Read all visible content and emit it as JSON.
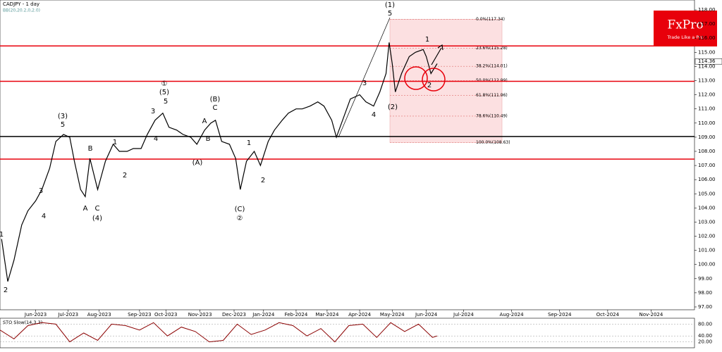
{
  "chart_data": {
    "type": "line",
    "title": "CADJPY - 1 day",
    "subtitle": "BB(20,20.2,0,2.0)",
    "color": "#000000",
    "x": [
      1,
      5,
      9,
      14,
      18,
      23,
      27,
      32,
      36,
      41,
      45,
      48,
      52,
      55,
      58,
      63,
      68,
      73,
      77,
      82,
      86,
      91,
      95,
      100,
      105,
      109,
      114,
      118,
      123,
      127,
      132,
      136,
      139,
      143,
      148,
      152,
      155,
      159,
      164,
      168,
      173,
      177,
      182,
      186,
      191,
      195,
      200,
      205,
      209,
      214,
      217,
      222,
      226,
      232,
      236,
      241,
      245,
      249,
      251,
      253,
      255,
      259,
      264,
      268,
      273,
      275,
      278,
      282
    ],
    "values": [
      101.8,
      98.8,
      100.3,
      102.8,
      103.8,
      104.5,
      105.3,
      106.8,
      108.7,
      109.2,
      109.0,
      107.3,
      105.3,
      104.8,
      107.5,
      105.3,
      107.3,
      108.5,
      108.0,
      108.0,
      108.2,
      108.2,
      109.2,
      110.2,
      110.7,
      109.7,
      109.5,
      109.2,
      109.0,
      108.5,
      109.5,
      110.0,
      110.2,
      108.7,
      108.5,
      107.5,
      105.3,
      107.3,
      108.0,
      107.0,
      108.7,
      109.5,
      110.2,
      110.7,
      111.0,
      111.0,
      111.2,
      111.5,
      111.2,
      110.2,
      109.0,
      110.5,
      111.7,
      112.0,
      111.5,
      111.2,
      112.2,
      113.5,
      115.7,
      114.2,
      112.2,
      113.5,
      114.7,
      115.0,
      115.2,
      114.7,
      113.5,
      114.2
    ],
    "xlim": [
      0,
      448
    ],
    "ylim": [
      96.8,
      118.7
    ],
    "xticks": [
      {
        "value": 23,
        "label": "Jun-2023"
      },
      {
        "value": 44,
        "label": "Jul-2023"
      },
      {
        "value": 64,
        "label": "Aug-2023"
      },
      {
        "value": 90,
        "label": "Sep-2023"
      },
      {
        "value": 107,
        "label": "Oct-2023"
      },
      {
        "value": 129,
        "label": "Nov-2023"
      },
      {
        "value": 151,
        "label": "Dec-2023"
      },
      {
        "value": 170,
        "label": "Jan-2024"
      },
      {
        "value": 191,
        "label": "Feb-2024"
      },
      {
        "value": 211,
        "label": "Mar-2024"
      },
      {
        "value": 232,
        "label": "Apr-2024"
      },
      {
        "value": 253,
        "label": "May-2024"
      },
      {
        "value": 275,
        "label": "Jun-2024"
      },
      {
        "value": 299,
        "label": "Jul-2024"
      },
      {
        "value": 330,
        "label": "Aug-2024"
      },
      {
        "value": 361,
        "label": "Sep-2024"
      },
      {
        "value": 392,
        "label": "Oct-2024"
      },
      {
        "value": 420,
        "label": "Nov-2024"
      }
    ],
    "yticks": [
      {
        "value": 97,
        "label": "97.00"
      },
      {
        "value": 98,
        "label": "98.00"
      },
      {
        "value": 99,
        "label": "99.00"
      },
      {
        "value": 100,
        "label": "100.00"
      },
      {
        "value": 101,
        "label": "101.00"
      },
      {
        "value": 102,
        "label": "102.00"
      },
      {
        "value": 103,
        "label": "103.00"
      },
      {
        "value": 104,
        "label": "104.00"
      },
      {
        "value": 105,
        "label": "105.00"
      },
      {
        "value": 106,
        "label": "106.00"
      },
      {
        "value": 107,
        "label": "107.00"
      },
      {
        "value": 108,
        "label": "108.00"
      },
      {
        "value": 109,
        "label": "109.00"
      },
      {
        "value": 110,
        "label": "110.00"
      },
      {
        "value": 111,
        "label": "111.00"
      },
      {
        "value": 112,
        "label": "112.00"
      },
      {
        "value": 113,
        "label": "113.00"
      },
      {
        "value": 114,
        "label": "114.00"
      },
      {
        "value": 115,
        "label": "115.00"
      },
      {
        "value": 116,
        "label": "116.00"
      },
      {
        "value": 117,
        "label": "117.00"
      },
      {
        "value": 118,
        "label": "118.00"
      }
    ],
    "last_price": {
      "value": 114.36,
      "label": "114.36"
    },
    "hlines": [
      {
        "value": 115.45,
        "color": "#e8000b"
      },
      {
        "value": 112.95,
        "color": "#e8000b"
      },
      {
        "value": 109.05,
        "color": "#000000"
      },
      {
        "value": 107.45,
        "color": "#e8000b"
      }
    ],
    "fib_levels": [
      {
        "value": 117.34,
        "label": "0.0%(117.34)"
      },
      {
        "value": 115.28,
        "label": "23.6%(115.28)"
      },
      {
        "value": 114.01,
        "label": "38.2%(114.01)"
      },
      {
        "value": 112.99,
        "label": "50.0%(112.99)"
      },
      {
        "value": 111.96,
        "label": "61.8%(111.96)"
      },
      {
        "value": 110.49,
        "label": "78.6%(110.49)"
      },
      {
        "value": 108.63,
        "label": "100.0%(108.63)"
      }
    ],
    "wave_labels": [
      "(1)",
      "5",
      "1",
      "2",
      "3",
      "4",
      "5",
      "(3)",
      "B",
      "A",
      "C",
      "(4)",
      "1",
      "2",
      "3",
      "4",
      "5",
      "(5)",
      "①",
      "A",
      "B",
      "C",
      "(B)",
      "(A)",
      "1",
      "2",
      "(C)",
      "②",
      "3",
      "4",
      "(2)",
      "1",
      "2"
    ],
    "logo": {
      "name": "FxPro",
      "tagline": "Trade Like a Pro"
    },
    "oscillator": {
      "title": "STO Slow(14,3,3)",
      "ylim": [
        0,
        100
      ],
      "yticks": [
        {
          "value": 80,
          "label": "80.00"
        },
        {
          "value": 40,
          "label": "40.00"
        },
        {
          "value": 20,
          "label": "20.00"
        }
      ],
      "x": [
        0,
        9,
        18,
        27,
        36,
        45,
        54,
        63,
        72,
        81,
        90,
        99,
        108,
        117,
        126,
        135,
        144,
        153,
        162,
        171,
        180,
        189,
        198,
        207,
        216,
        225,
        234,
        243,
        252,
        261,
        270,
        279,
        282
      ],
      "values": [
        60,
        30,
        75,
        85,
        80,
        20,
        50,
        25,
        80,
        75,
        60,
        85,
        40,
        70,
        55,
        20,
        25,
        80,
        45,
        60,
        85,
        75,
        40,
        65,
        20,
        75,
        80,
        35,
        85,
        55,
        80,
        35,
        40
      ]
    }
  }
}
